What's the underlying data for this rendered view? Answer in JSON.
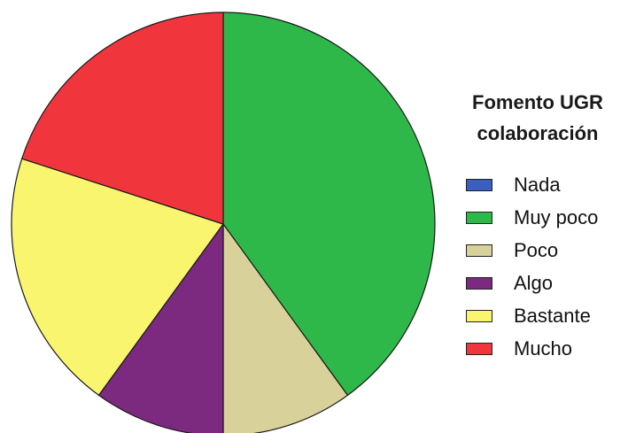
{
  "chart_data": {
    "type": "pie",
    "title": "",
    "legend": {
      "title_line1": "Fomento UGR",
      "title_line2": "colaboración",
      "placement": "right"
    },
    "slices": [
      {
        "label": "Nada",
        "value": 0,
        "color": "#3a5fbf"
      },
      {
        "label": "Muy poco",
        "value": 40,
        "color": "#2fb84a"
      },
      {
        "label": "Poco",
        "value": 10,
        "color": "#d8d19a"
      },
      {
        "label": "Algo",
        "value": 10,
        "color": "#7b2a80"
      },
      {
        "label": "Bastante",
        "value": 20,
        "color": "#faf56f"
      },
      {
        "label": "Mucho",
        "value": 20,
        "color": "#f0363c"
      }
    ],
    "start": "12 o'clock",
    "direction": "clockwise"
  }
}
